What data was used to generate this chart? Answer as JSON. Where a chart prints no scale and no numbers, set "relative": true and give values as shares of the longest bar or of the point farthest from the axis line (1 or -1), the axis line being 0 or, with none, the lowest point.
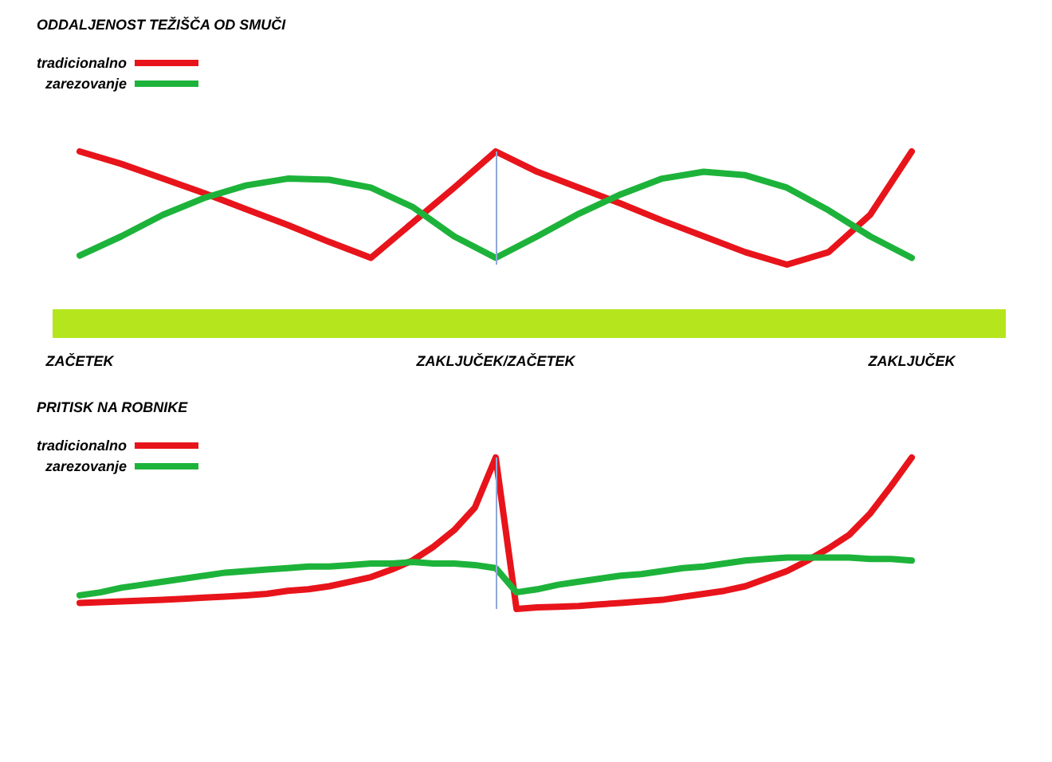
{
  "chart_data": [
    {
      "type": "line",
      "title": "ODDALJENOST TEŽIŠČA OD SMUČI",
      "relative": true,
      "legend": "top left",
      "grid": false,
      "marker": "none",
      "categories": [
        "ZAČETEK",
        null,
        null,
        null,
        null,
        null,
        null,
        null,
        null,
        null,
        "ZAKLJUČEK/ZAČETEK",
        null,
        null,
        null,
        null,
        null,
        null,
        null,
        null,
        null,
        "ZAKLJUČEK"
      ],
      "ref_lines": [
        {
          "axis": "x",
          "value": "ZAKLJUČEK/ZAČETEK",
          "color": "#8fa8d8"
        }
      ],
      "series": [
        {
          "name": "tradicionalno",
          "color": "#e8141b",
          "values": [
            1,
            0.89,
            0.76,
            0.63,
            0.49,
            0.35,
            0.2,
            0.06,
            0.37,
            0.68,
            1,
            0.82,
            0.68,
            0.54,
            0.39,
            0.25,
            0.11,
            0,
            0.11,
            0.44,
            1
          ]
        },
        {
          "name": "zarezovanje",
          "color": "#1db33a",
          "values": [
            0.08,
            0.25,
            0.44,
            0.59,
            0.7,
            0.76,
            0.75,
            0.68,
            0.51,
            0.25,
            0.06,
            0.25,
            0.45,
            0.62,
            0.76,
            0.82,
            0.79,
            0.68,
            0.48,
            0.25,
            0.06
          ]
        }
      ]
    },
    {
      "type": "line",
      "title": "PRITISK NA ROBNIKE",
      "relative": true,
      "legend": "top left",
      "grid": false,
      "marker": "none",
      "tick_labels": false,
      "categories": [
        "ZAČETEK",
        null,
        null,
        null,
        null,
        null,
        null,
        null,
        null,
        null,
        null,
        null,
        null,
        null,
        null,
        null,
        null,
        null,
        null,
        null,
        "ZAKLJUČEK/ZAČETEK",
        null,
        null,
        null,
        null,
        null,
        null,
        null,
        null,
        null,
        null,
        null,
        null,
        null,
        null,
        null,
        null,
        null,
        null,
        null,
        "ZAKLJUČEK"
      ],
      "ref_lines": [
        {
          "axis": "x",
          "value": "ZAKLJUČEK/ZAČETEK",
          "color": "#8fa8d8"
        }
      ],
      "series": [
        {
          "name": "tradicionalno",
          "color": "#e8141b",
          "values": [
            0.04,
            0.045,
            0.05,
            0.055,
            0.06,
            0.067,
            0.075,
            0.082,
            0.09,
            0.1,
            0.12,
            0.13,
            0.15,
            0.18,
            0.21,
            0.26,
            0.32,
            0.41,
            0.52,
            0.67,
            1,
            0,
            0.01,
            0.015,
            0.02,
            0.03,
            0.04,
            0.05,
            0.06,
            0.08,
            0.1,
            0.12,
            0.15,
            0.2,
            0.25,
            0.32,
            0.4,
            0.49,
            0.63,
            0.81,
            1
          ]
        },
        {
          "name": "zarezovanje",
          "color": "#1db33a",
          "values": [
            0.09,
            0.11,
            0.14,
            0.16,
            0.18,
            0.2,
            0.22,
            0.24,
            0.25,
            0.26,
            0.27,
            0.28,
            0.28,
            0.29,
            0.3,
            0.3,
            0.31,
            0.3,
            0.3,
            0.29,
            0.27,
            0.11,
            0.13,
            0.16,
            0.18,
            0.2,
            0.22,
            0.23,
            0.25,
            0.27,
            0.28,
            0.3,
            0.32,
            0.33,
            0.34,
            0.34,
            0.34,
            0.34,
            0.33,
            0.33,
            0.32
          ]
        }
      ]
    }
  ]
}
